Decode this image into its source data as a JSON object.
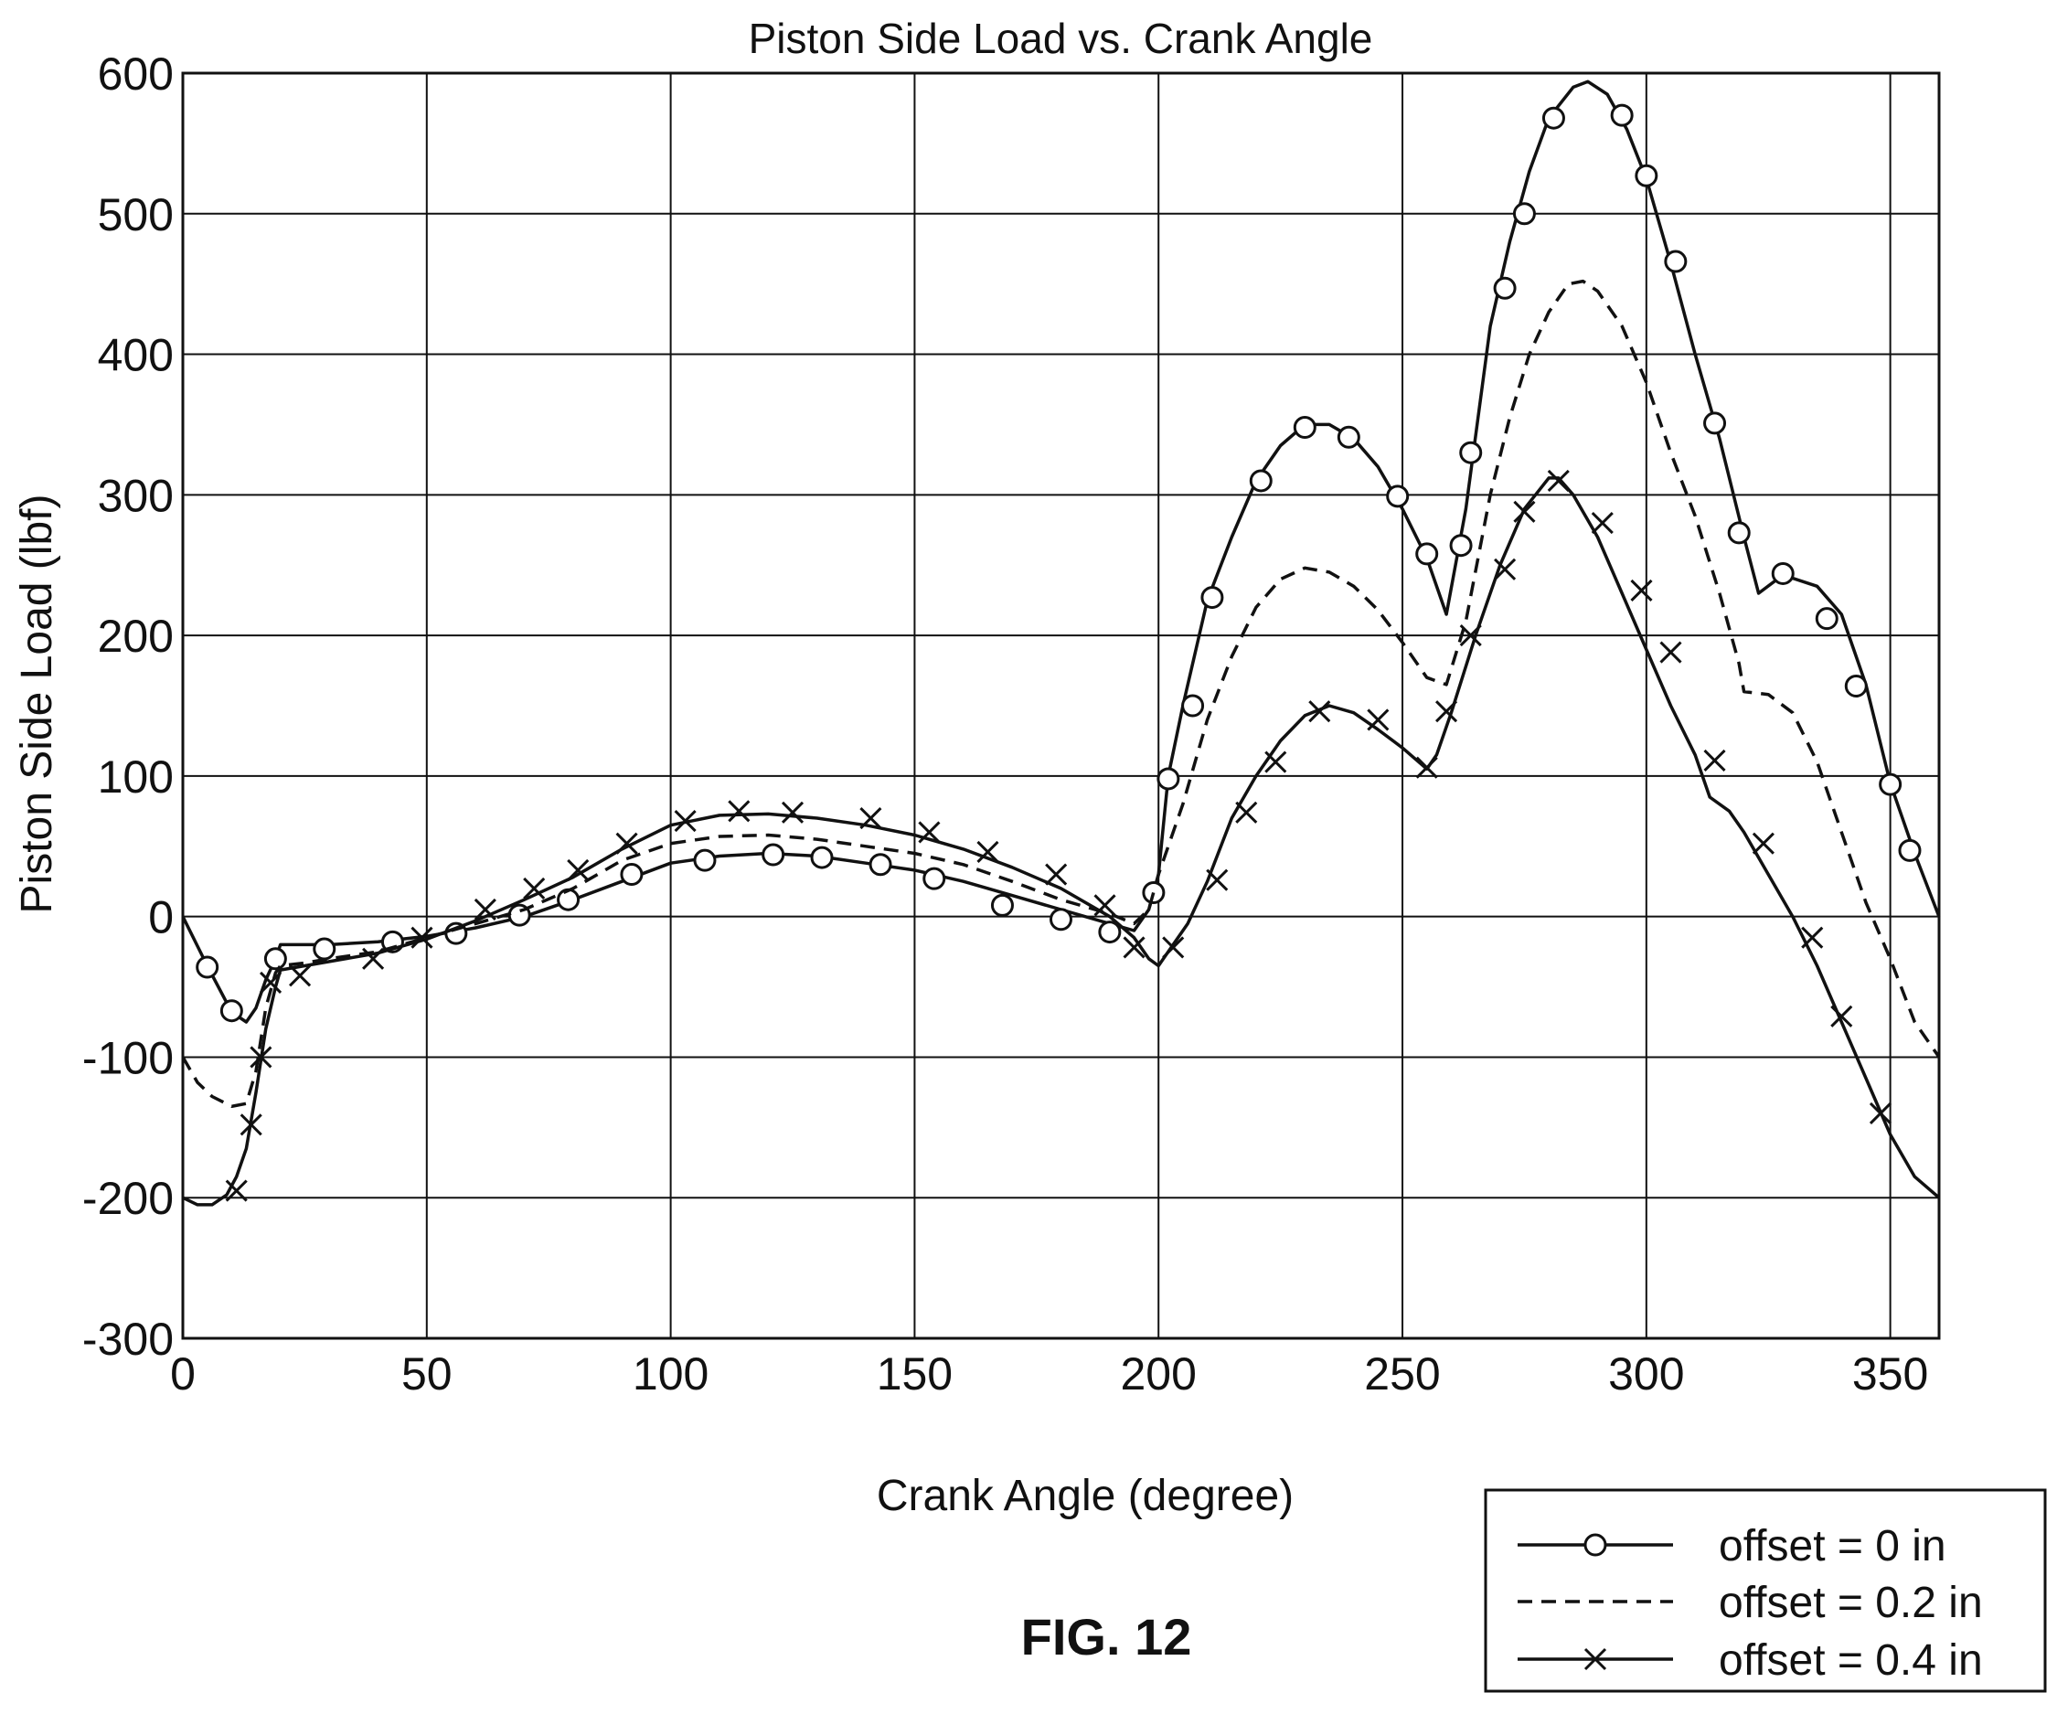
{
  "figure_label": "FIG. 12",
  "chart_data": {
    "type": "line",
    "title": "Piston Side Load vs. Crank Angle",
    "xlabel": "Crank Angle (degree)",
    "ylabel": "Piston Side Load (lbf)",
    "xlim": [
      0,
      360
    ],
    "ylim": [
      -300,
      600
    ],
    "xticks": [
      0,
      50,
      100,
      150,
      200,
      250,
      300,
      350
    ],
    "yticks": [
      -300,
      -200,
      -100,
      0,
      100,
      200,
      300,
      400,
      500,
      600
    ],
    "xtick_labels": [
      "0",
      "50",
      "100",
      "150",
      "200",
      "250",
      "300",
      "350"
    ],
    "ytick_labels": [
      "-300",
      "-200",
      "-100",
      "0",
      "100",
      "200",
      "300",
      "400",
      "500",
      "600"
    ],
    "grid": true,
    "legend_position": "bottom-right, outside plot",
    "series": [
      {
        "name": "offset = 0 in",
        "line": "solid",
        "marker": "circle",
        "color": "#111111",
        "x": [
          0,
          5,
          10,
          13,
          15,
          17,
          19,
          20,
          25,
          30,
          40,
          50,
          60,
          70,
          80,
          90,
          100,
          110,
          120,
          130,
          140,
          150,
          160,
          170,
          180,
          190,
          195,
          198,
          200,
          202,
          205,
          210,
          215,
          220,
          225,
          230,
          235,
          240,
          245,
          250,
          255,
          259,
          263,
          268,
          272,
          276,
          280,
          285,
          288,
          292,
          296,
          300,
          305,
          310,
          315,
          320,
          323,
          328,
          335,
          340,
          345,
          350,
          355,
          360
        ],
        "y": [
          0,
          -35,
          -68,
          -75,
          -65,
          -45,
          -30,
          -20,
          -20,
          -20,
          -18,
          -14,
          -8,
          0,
          12,
          25,
          38,
          43,
          45,
          43,
          38,
          33,
          25,
          15,
          5,
          -5,
          -10,
          5,
          30,
          100,
          150,
          225,
          270,
          310,
          335,
          350,
          350,
          340,
          320,
          290,
          255,
          215,
          290,
          420,
          480,
          530,
          568,
          590,
          594,
          585,
          560,
          525,
          465,
          400,
          340,
          270,
          230,
          243,
          235,
          215,
          165,
          95,
          45,
          0
        ],
        "marker_x": [
          5,
          10,
          19,
          29,
          43,
          56,
          69,
          79,
          92,
          107,
          121,
          131,
          143,
          154,
          168,
          180,
          190,
          199,
          202,
          207,
          211,
          221,
          230,
          239,
          249,
          255,
          262,
          264,
          271,
          275,
          281,
          295,
          300,
          306,
          314,
          319,
          328,
          337,
          343,
          350,
          354
        ],
        "marker_y": [
          -36,
          -67,
          -30,
          -23,
          -18,
          -12,
          1,
          12,
          30,
          40,
          44,
          42,
          37,
          27,
          8,
          -2,
          -11,
          17,
          98,
          150,
          227,
          310,
          348,
          341,
          299,
          258,
          264,
          330,
          447,
          500,
          568,
          570,
          527,
          466,
          351,
          273,
          244,
          212,
          164,
          94,
          47
        ]
      },
      {
        "name": "offset = 0.2 in",
        "line": "dashed",
        "marker": "none",
        "color": "#111111",
        "x": [
          0,
          3,
          6,
          10,
          13,
          15,
          17,
          19,
          20,
          25,
          30,
          40,
          50,
          60,
          70,
          80,
          90,
          100,
          110,
          120,
          130,
          140,
          150,
          160,
          170,
          180,
          190,
          195,
          198,
          200,
          205,
          210,
          215,
          220,
          225,
          230,
          235,
          240,
          245,
          250,
          255,
          259,
          263,
          268,
          272,
          276,
          280,
          284,
          287,
          290,
          295,
          300,
          305,
          310,
          315,
          319,
          320,
          325,
          330,
          335,
          340,
          345,
          350,
          355,
          360
        ],
        "y": [
          -100,
          -118,
          -128,
          -135,
          -133,
          -110,
          -65,
          -40,
          -35,
          -33,
          -30,
          -25,
          -15,
          -5,
          5,
          20,
          40,
          52,
          57,
          58,
          55,
          50,
          45,
          37,
          25,
          12,
          2,
          -5,
          5,
          30,
          80,
          140,
          185,
          220,
          240,
          248,
          245,
          235,
          218,
          195,
          170,
          165,
          210,
          300,
          355,
          400,
          430,
          450,
          452,
          445,
          420,
          380,
          330,
          285,
          230,
          180,
          160,
          158,
          145,
          110,
          60,
          10,
          -30,
          -75,
          -100
        ]
      },
      {
        "name": "offset = 0.4 in",
        "line": "solid",
        "marker": "x",
        "color": "#111111",
        "x": [
          0,
          3,
          6,
          9,
          11,
          13,
          15,
          17,
          19,
          20,
          25,
          30,
          40,
          50,
          60,
          70,
          80,
          90,
          100,
          110,
          120,
          130,
          140,
          150,
          160,
          170,
          180,
          190,
          195,
          198,
          200,
          203,
          206,
          210,
          215,
          220,
          225,
          230,
          235,
          240,
          245,
          250,
          255,
          257,
          260,
          265,
          270,
          275,
          280,
          282,
          285,
          290,
          295,
          300,
          305,
          310,
          313,
          317,
          320,
          325,
          330,
          335,
          340,
          345,
          350,
          355,
          360
        ],
        "y": [
          -200,
          -205,
          -205,
          -198,
          -185,
          -165,
          -125,
          -80,
          -50,
          -38,
          -35,
          -32,
          -26,
          -16,
          -3,
          12,
          28,
          48,
          65,
          72,
          73,
          70,
          65,
          58,
          48,
          35,
          20,
          0,
          -15,
          -30,
          -35,
          -20,
          -5,
          25,
          70,
          100,
          125,
          143,
          150,
          145,
          133,
          120,
          105,
          115,
          145,
          200,
          250,
          290,
          312,
          312,
          300,
          270,
          230,
          190,
          150,
          115,
          85,
          75,
          60,
          30,
          0,
          -35,
          -75,
          -115,
          -155,
          -185,
          -200
        ],
        "marker_x": [
          11,
          14,
          16,
          18,
          24,
          39,
          49,
          62,
          72,
          81,
          91,
          103,
          114,
          125,
          141,
          153,
          165,
          179,
          189,
          195,
          203,
          212,
          218,
          224,
          233,
          245,
          255,
          259,
          264,
          271,
          275,
          282,
          291,
          299,
          305,
          314,
          324,
          334,
          340,
          348
        ],
        "marker_y": [
          -195,
          -148,
          -100,
          -47,
          -42,
          -30,
          -15,
          5,
          20,
          33,
          52,
          68,
          75,
          74,
          70,
          60,
          46,
          30,
          8,
          -22,
          -22,
          26,
          74,
          110,
          146,
          140,
          106,
          146,
          200,
          247,
          288,
          310,
          280,
          232,
          188,
          111,
          52,
          -15,
          -71,
          -140
        ]
      }
    ]
  }
}
